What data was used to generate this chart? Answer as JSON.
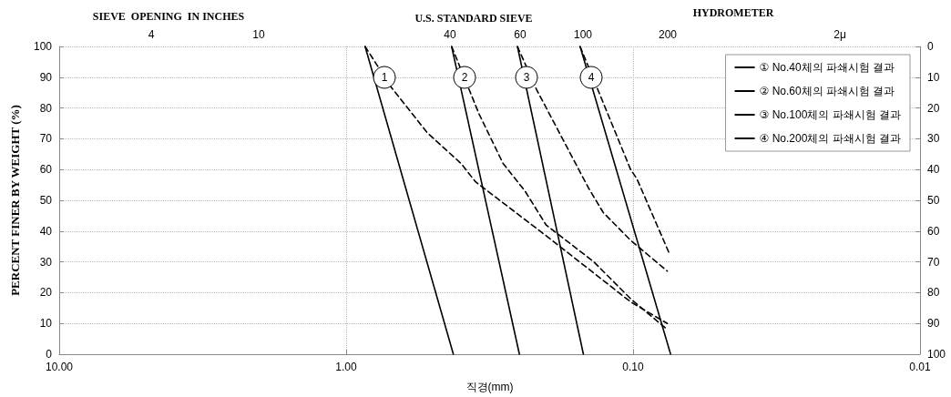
{
  "chart_data": {
    "type": "line",
    "xlabel": "직경(mm)",
    "ylabel": "PERCENT FINER BY WEIGHT (%)",
    "log": "x",
    "xlim": [
      10,
      0.01
    ],
    "xticks": [
      {
        "value": 10,
        "label": "10.00"
      },
      {
        "value": 1,
        "label": "1.00"
      },
      {
        "value": 0.1,
        "label": "0.10"
      },
      {
        "value": 0.01,
        "label": "0.01"
      }
    ],
    "ylim": [
      0,
      100
    ],
    "yticks": [
      0,
      10,
      20,
      30,
      40,
      50,
      60,
      70,
      80,
      90,
      100
    ],
    "y2lim": [
      100,
      0
    ],
    "y2ticks": [
      0,
      10,
      20,
      30,
      40,
      50,
      60,
      70,
      80,
      90,
      100
    ],
    "grid": true,
    "legend": "top right",
    "marker": "none",
    "series": [
      {
        "name": "① No.40체의 파쇄시험 결과",
        "color": "#000000",
        "line_style": "solid",
        "x": [
          0.859,
          0.423
        ],
        "values": [
          100,
          0
        ]
      },
      {
        "name": "② No.60체의 파쇄시험 결과",
        "color": "#000000",
        "line_style": "solid",
        "x": [
          0.429,
          0.249
        ],
        "values": [
          100,
          0
        ]
      },
      {
        "name": "③ No.100체의 파쇄시험 결과",
        "color": "#000000",
        "line_style": "solid",
        "x": [
          0.253,
          0.149
        ],
        "values": [
          100,
          0
        ]
      },
      {
        "name": "④ No.200체의 파쇄시험 결과",
        "color": "#000000",
        "line_style": "solid",
        "x": [
          0.153,
          0.074
        ],
        "values": [
          100,
          0
        ]
      },
      {
        "color": "#000000",
        "line_style": "dashed",
        "x": [
          0.859,
          0.7,
          0.522,
          0.398,
          0.354,
          0.201,
          0.102,
          0.076
        ],
        "values": [
          100,
          87,
          72,
          62,
          56,
          38.5,
          17,
          10
        ]
      },
      {
        "color": "#000000",
        "line_style": "dashed",
        "x": [
          0.429,
          0.344,
          0.284,
          0.238,
          0.201,
          0.137,
          0.102,
          0.076
        ],
        "values": [
          100,
          78,
          62,
          53,
          42,
          30,
          18,
          8
        ]
      },
      {
        "color": "#000000",
        "line_style": "dashed",
        "x": [
          0.253,
          0.217,
          0.143,
          0.127,
          0.102,
          0.076
        ],
        "values": [
          100,
          86,
          54,
          46,
          37,
          27
        ]
      },
      {
        "color": "#000000",
        "line_style": "dashed",
        "x": [
          0.153,
          0.102,
          0.097,
          0.075
        ],
        "values": [
          100,
          60,
          57,
          33
        ]
      }
    ],
    "annotations": [
      "SIEVE  OPENING  IN INCHES",
      "U.S. STANDARD SIEVE",
      "HYDROMETER",
      "4",
      "10",
      "40",
      "60",
      "100",
      "200",
      "2μ",
      "1",
      "2",
      "3",
      "4"
    ]
  }
}
